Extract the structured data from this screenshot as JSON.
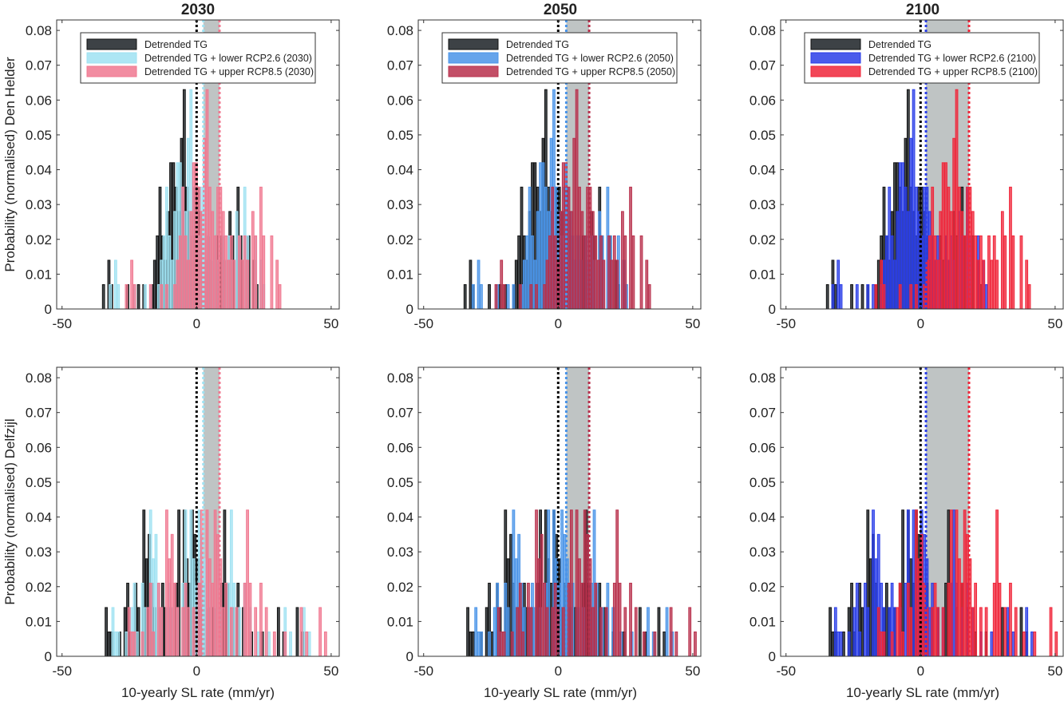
{
  "figure": {
    "row_labels": [
      "Probability (normalised) Den Helder",
      "Probability (normalised) Delfzijl"
    ],
    "col_titles": [
      "2030",
      "2050",
      "2100"
    ],
    "xlabel": "10-yearly SL rate (mm/yr)"
  },
  "chart_data": {
    "type": "bar",
    "subtype": "overlaid-histogram-grid",
    "xlabel": "10-yearly SL rate (mm/yr)",
    "xlim": [
      -52,
      53
    ],
    "ylim": [
      0,
      0.083
    ],
    "xticks": [
      -50,
      0,
      50
    ],
    "yticks": [
      0,
      0.01,
      0.02,
      0.03,
      0.04,
      0.05,
      0.06,
      0.07,
      0.08
    ],
    "ytick_labels": [
      "0",
      "0.01",
      "0.02",
      "0.03",
      "0.04",
      "0.05",
      "0.06",
      "0.07",
      "0.08"
    ],
    "xtick_labels": [
      "-50",
      "0",
      "50"
    ],
    "grid": false,
    "legend_position": "top",
    "bin_width": 1,
    "base": {
      "den_helder": {
        "-35": 0.007,
        "-33": 0.014,
        "-32": 0.007,
        "-26": 0.007,
        "-22": 0.007,
        "-20": 0.007,
        "-17": 0.007,
        "-16": 0.014,
        "-15": 0.021,
        "-14": 0.035,
        "-13": 0.021,
        "-12": 0.014,
        "-11": 0.028,
        "-10": 0.042,
        "-9": 0.042,
        "-8": 0.035,
        "-7": 0.028,
        "-6": 0.049,
        "-5": 0.063,
        "-4": 0.035,
        "-3": 0.028,
        "-2": 0.021,
        "-1": 0.035,
        "0": 0.035,
        "1": 0.028,
        "2": 0.021,
        "3": 0.014,
        "4": 0.021,
        "5": 0.014,
        "7": 0.021,
        "8": 0.014,
        "9": 0.021,
        "10": 0.014,
        "12": 0.028,
        "13": 0.021,
        "15": 0.035,
        "16": 0.021,
        "19": 0.021,
        "21": 0.014,
        "22": 0.007
      },
      "delfzijl": {
        "-34": 0.014,
        "-33": 0.007,
        "-32": 0.007,
        "-29": 0.007,
        "-27": 0.014,
        "-26": 0.021,
        "-25": 0.007,
        "-23": 0.021,
        "-22": 0.014,
        "-20": 0.042,
        "-19": 0.028,
        "-18": 0.035,
        "-17": 0.021,
        "-16": 0.014,
        "-14": 0.014,
        "-13": 0.021,
        "-12": 0.014,
        "-10": 0.014,
        "-8": 0.021,
        "-7": 0.042,
        "-5": 0.042,
        "-4": 0.028,
        "-3": 0.021,
        "-2": 0.042,
        "-1": 0.035,
        "0": 0.028,
        "1": 0.014,
        "2": 0.021,
        "4": 0.014,
        "6": 0.014,
        "9": 0.021,
        "10": 0.042,
        "11": 0.021,
        "13": 0.014,
        "15": 0.021,
        "17": 0.014,
        "20": 0.007,
        "24": 0.007,
        "30": 0.014,
        "32": 0.007,
        "37": 0.014,
        "39": 0.007
      }
    },
    "series_names": [
      "Detrended TG",
      "Detrended TG + lower RCP2.6",
      "Detrended TG + upper RCP8.5"
    ],
    "panels": [
      {
        "row": "den_helder",
        "year": "2030",
        "shift_lower": 2.5,
        "shift_upper": 8.5,
        "legend": [
          "Detrended TG",
          "Detrended TG + lower RCP2.6 (2030)",
          "Detrended TG + upper RCP8.5 (2030)"
        ],
        "colors": {
          "base": "#3d4246",
          "lower": "#9fe2f2",
          "upper": "#f07890",
          "band": "#bfc4c4"
        },
        "mean_base": 0,
        "mean_lower": 2.5,
        "mean_upper": 8.5
      },
      {
        "row": "den_helder",
        "year": "2050",
        "shift_lower": 3,
        "shift_upper": 11.5,
        "legend": [
          "Detrended TG",
          "Detrended TG + lower RCP2.6 (2050)",
          "Detrended TG + upper RCP8.5 (2050)"
        ],
        "colors": {
          "base": "#3d4246",
          "lower": "#4a94e8",
          "upper": "#b8304c",
          "band": "#bfc4c4"
        },
        "mean_base": 0,
        "mean_lower": 3,
        "mean_upper": 11.5
      },
      {
        "row": "den_helder",
        "year": "2100",
        "shift_lower": 2,
        "shift_upper": 18,
        "legend": [
          "Detrended TG",
          "Detrended TG + lower RCP2.6 (2100)",
          "Detrended TG + upper RCP8.5 (2100)"
        ],
        "colors": {
          "base": "#3d4246",
          "lower": "#2a3ee8",
          "upper": "#f0263a",
          "band": "#bfc4c4"
        },
        "mean_base": 0,
        "mean_lower": 2,
        "mean_upper": 18
      },
      {
        "row": "delfzijl",
        "year": "2030",
        "shift_lower": 2.5,
        "shift_upper": 8.5,
        "colors": {
          "base": "#3d4246",
          "lower": "#9fe2f2",
          "upper": "#f07890",
          "band": "#bfc4c4"
        },
        "mean_base": 0,
        "mean_lower": 2.5,
        "mean_upper": 8.5
      },
      {
        "row": "delfzijl",
        "year": "2050",
        "shift_lower": 3,
        "shift_upper": 11.5,
        "colors": {
          "base": "#3d4246",
          "lower": "#4a94e8",
          "upper": "#b8304c",
          "band": "#bfc4c4"
        },
        "mean_base": 0,
        "mean_lower": 3,
        "mean_upper": 11.5
      },
      {
        "row": "delfzijl",
        "year": "2100",
        "shift_lower": 2,
        "shift_upper": 18,
        "colors": {
          "base": "#3d4246",
          "lower": "#2a3ee8",
          "upper": "#f0263a",
          "band": "#bfc4c4"
        },
        "mean_base": 0,
        "mean_lower": 2,
        "mean_upper": 18
      }
    ]
  }
}
